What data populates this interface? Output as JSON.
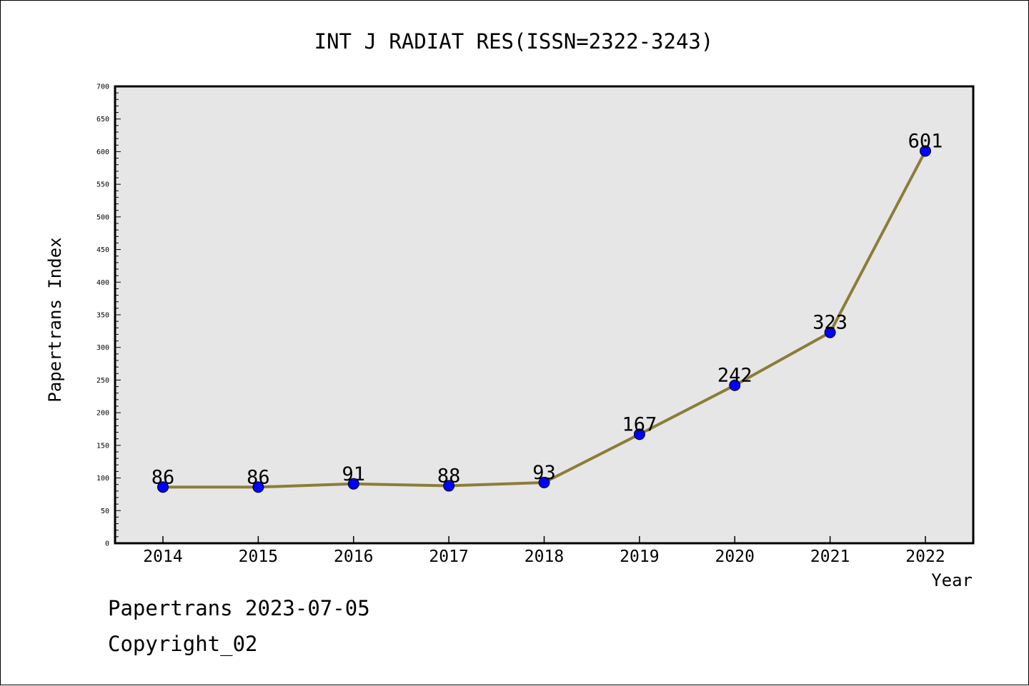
{
  "chart_data": {
    "type": "line",
    "title": "INT J RADIAT RES(ISSN=2322-3243)",
    "xlabel": "Year",
    "ylabel": "Papertrans Index",
    "categories": [
      "2014",
      "2015",
      "2016",
      "2017",
      "2018",
      "2019",
      "2020",
      "2021",
      "2022"
    ],
    "series": [
      {
        "values": [
          86,
          86,
          91,
          88,
          93,
          167,
          242,
          323,
          601
        ],
        "labels": [
          "86",
          "86",
          "91",
          "88",
          "93",
          "167",
          "242",
          "323",
          "601"
        ]
      }
    ],
    "ylim": [
      0,
      700
    ],
    "y_ticks": [
      "0",
      "50",
      "100",
      "150",
      "200",
      "250",
      "300",
      "350",
      "400",
      "450",
      "500",
      "550",
      "600",
      "650",
      "700"
    ],
    "grid": false,
    "colors": {
      "line": "#8B7D3A",
      "marker": "#0000FF",
      "plot_background": "#E6E6E6"
    }
  },
  "footer": {
    "source": "Papertrans 2023-07-05",
    "copyright": "Copyright_02"
  }
}
